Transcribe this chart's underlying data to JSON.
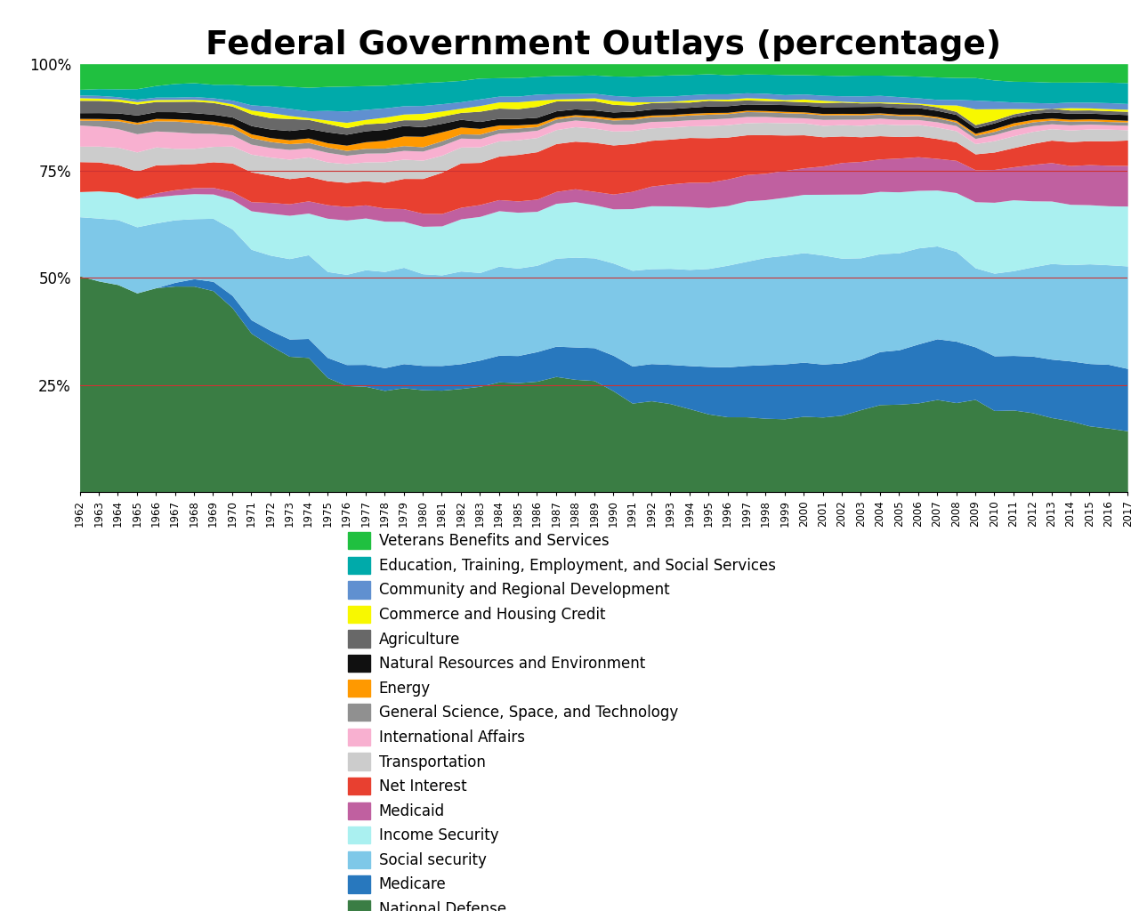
{
  "title": "Federal Government Outlays (percentage)",
  "years": [
    1962,
    1963,
    1964,
    1965,
    1966,
    1967,
    1968,
    1969,
    1970,
    1971,
    1972,
    1973,
    1974,
    1975,
    1976,
    1977,
    1978,
    1979,
    1980,
    1981,
    1982,
    1983,
    1984,
    1985,
    1986,
    1987,
    1988,
    1989,
    1990,
    1991,
    1992,
    1993,
    1994,
    1995,
    1996,
    1997,
    1998,
    1999,
    2000,
    2001,
    2002,
    2003,
    2004,
    2005,
    2006,
    2007,
    2008,
    2009,
    2010,
    2011,
    2012,
    2013,
    2014,
    2015,
    2016,
    2017
  ],
  "stack_order": [
    "National Defense",
    "Medicare",
    "Social security",
    "Income Security",
    "Medicaid",
    "Net Interest",
    "Transportation",
    "International Affairs",
    "General Science, Space, and Technology",
    "Energy",
    "Natural Resources and Environment",
    "Agriculture",
    "Commerce and Housing Credit",
    "Community and Regional Development",
    "Education, Training, Employment, and Social Services",
    "Veterans Benefits and Services"
  ],
  "colors": {
    "National Defense": "#3a7d44",
    "Medicare": "#2878be",
    "Social security": "#7ec8e8",
    "Income Security": "#aaf0f0",
    "Medicaid": "#c060a0",
    "Net Interest": "#e84030",
    "Transportation": "#cccccc",
    "International Affairs": "#f8b0d0",
    "General Science, Space, and Technology": "#909090",
    "Energy": "#ff9900",
    "Natural Resources and Environment": "#101010",
    "Agriculture": "#686868",
    "Commerce and Housing Credit": "#f8f800",
    "Community and Regional Development": "#6090d0",
    "Education, Training, Employment, and Social Services": "#00aaaa",
    "Veterans Benefits and Services": "#20c040"
  },
  "legend_order": [
    "Veterans Benefits and Services",
    "Education, Training, Employment, and Social Services",
    "Community and Regional Development",
    "Commerce and Housing Credit",
    "Agriculture",
    "Natural Resources and Environment",
    "Energy",
    "General Science, Space, and Technology",
    "International Affairs",
    "Transportation",
    "Net Interest",
    "Medicaid",
    "Income Security",
    "Social security",
    "Medicare",
    "National Defense"
  ],
  "data": {
    "National Defense": [
      49.0,
      46.6,
      44.7,
      41.5,
      42.2,
      43.8,
      44.5,
      43.1,
      40.5,
      36.7,
      33.9,
      30.7,
      29.7,
      26.2,
      24.3,
      24.1,
      23.2,
      23.8,
      23.5,
      23.9,
      24.2,
      25.8,
      26.8,
      27.0,
      27.3,
      28.2,
      27.2,
      26.8,
      23.9,
      20.6,
      21.3,
      20.5,
      19.3,
      17.9,
      17.0,
      16.8,
      16.2,
      16.1,
      16.5,
      16.4,
      17.0,
      18.7,
      19.9,
      20.0,
      20.1,
      21.0,
      20.8,
      23.4,
      20.1,
      20.1,
      19.2,
      18.2,
      17.8,
      16.3,
      15.9,
      14.9
    ],
    "Medicare": [
      0.0,
      0.0,
      0.0,
      0.0,
      0.0,
      0.8,
      1.6,
      2.0,
      2.7,
      3.1,
      3.5,
      3.9,
      4.2,
      4.6,
      4.8,
      5.0,
      5.2,
      5.5,
      5.6,
      5.8,
      5.8,
      6.4,
      6.5,
      6.7,
      7.3,
      7.4,
      7.8,
      7.9,
      8.4,
      8.6,
      8.7,
      9.1,
      10.0,
      10.9,
      11.3,
      11.5,
      11.8,
      12.1,
      11.8,
      11.6,
      11.6,
      11.5,
      12.1,
      12.4,
      13.3,
      13.8,
      14.3,
      13.3,
      13.5,
      13.4,
      13.7,
      14.3,
      15.0,
      15.4,
      15.9,
      15.2
    ],
    "Social security": [
      13.4,
      13.9,
      14.0,
      13.8,
      13.4,
      13.3,
      13.0,
      13.5,
      14.6,
      16.3,
      17.4,
      18.2,
      18.5,
      19.7,
      20.6,
      21.6,
      22.0,
      22.0,
      21.1,
      21.3,
      21.7,
      21.4,
      21.7,
      21.6,
      21.3,
      21.5,
      21.7,
      21.6,
      21.8,
      22.2,
      22.2,
      22.3,
      22.3,
      22.5,
      23.0,
      23.3,
      23.6,
      23.9,
      23.9,
      23.9,
      23.2,
      23.0,
      22.3,
      22.1,
      21.7,
      21.1,
      20.9,
      20.0,
      20.4,
      20.8,
      21.6,
      23.4,
      24.1,
      24.6,
      24.8,
      25.0
    ],
    "Income Security": [
      5.7,
      6.0,
      5.9,
      5.9,
      5.4,
      5.3,
      5.4,
      5.2,
      6.5,
      8.9,
      9.7,
      9.8,
      9.2,
      12.2,
      12.4,
      11.8,
      11.5,
      10.5,
      10.9,
      11.5,
      12.2,
      13.7,
      13.5,
      13.8,
      13.3,
      13.4,
      13.4,
      12.8,
      12.8,
      14.3,
      14.7,
      14.5,
      14.6,
      14.0,
      13.5,
      13.5,
      12.7,
      12.8,
      12.7,
      13.3,
      14.2,
      14.5,
      14.2,
      13.9,
      13.0,
      12.7,
      13.7,
      16.7,
      17.5,
      17.4,
      16.0,
      15.3,
      15.1,
      14.6,
      14.7,
      14.6
    ],
    "Medicaid": [
      0.0,
      0.0,
      0.0,
      0.0,
      0.8,
      1.1,
      1.3,
      1.4,
      1.7,
      2.1,
      2.5,
      2.6,
      2.7,
      3.1,
      3.1,
      3.0,
      3.0,
      2.9,
      3.0,
      2.9,
      2.7,
      2.9,
      2.7,
      2.8,
      3.0,
      2.9,
      3.1,
      3.2,
      3.5,
      4.0,
      4.6,
      5.1,
      5.6,
      5.8,
      6.0,
      5.9,
      5.8,
      5.9,
      5.8,
      6.2,
      7.0,
      7.4,
      7.4,
      7.7,
      7.6,
      7.2,
      7.5,
      8.1,
      8.1,
      8.1,
      8.8,
      9.4,
      9.7,
      9.9,
      10.1,
      9.9
    ],
    "Net Interest": [
      6.8,
      6.4,
      5.9,
      5.7,
      5.8,
      5.4,
      5.2,
      5.5,
      6.3,
      6.9,
      6.3,
      5.7,
      5.4,
      5.5,
      5.5,
      5.5,
      5.9,
      6.9,
      8.0,
      9.7,
      10.4,
      10.3,
      10.6,
      11.5,
      11.7,
      11.7,
      11.5,
      11.8,
      11.6,
      11.1,
      10.7,
      10.4,
      10.4,
      10.2,
      9.5,
      8.9,
      8.5,
      7.8,
      7.2,
      6.4,
      5.9,
      5.6,
      5.3,
      4.9,
      4.7,
      4.5,
      4.3,
      4.0,
      4.3,
      4.7,
      5.1,
      5.5,
      6.0,
      5.9,
      6.1,
      6.2
    ],
    "Transportation": [
      3.5,
      3.5,
      3.8,
      4.0,
      3.7,
      3.4,
      3.3,
      3.3,
      3.7,
      4.1,
      4.2,
      4.4,
      4.3,
      4.3,
      4.3,
      4.3,
      4.7,
      4.4,
      4.2,
      4.0,
      3.7,
      3.8,
      3.7,
      3.6,
      3.5,
      3.4,
      3.5,
      3.4,
      3.3,
      3.0,
      2.9,
      2.8,
      2.7,
      2.8,
      2.8,
      2.7,
      2.7,
      2.7,
      2.6,
      2.5,
      2.5,
      2.6,
      2.7,
      2.7,
      2.6,
      2.6,
      2.6,
      2.6,
      2.8,
      2.9,
      2.9,
      2.8,
      2.9,
      2.9,
      2.9,
      2.5
    ],
    "International Affairs": [
      4.8,
      4.4,
      4.0,
      3.8,
      3.3,
      3.5,
      3.3,
      2.8,
      2.5,
      2.3,
      2.2,
      2.2,
      2.0,
      2.2,
      1.9,
      2.0,
      2.0,
      2.0,
      2.1,
      2.3,
      2.1,
      2.0,
      1.9,
      1.9,
      1.8,
      1.7,
      1.6,
      1.6,
      1.6,
      1.5,
      1.5,
      1.4,
      1.4,
      1.5,
      1.5,
      1.4,
      1.3,
      1.2,
      1.1,
      1.3,
      1.2,
      1.4,
      1.3,
      1.2,
      1.1,
      1.2,
      1.2,
      1.3,
      1.5,
      1.6,
      1.4,
      1.2,
      1.3,
      1.2,
      1.1,
      1.1
    ],
    "General Science, Space, and Technology": [
      1.1,
      1.3,
      1.7,
      2.0,
      2.1,
      2.3,
      2.3,
      1.9,
      1.6,
      1.5,
      1.4,
      1.3,
      1.2,
      1.2,
      1.1,
      1.1,
      1.1,
      1.1,
      1.0,
      1.1,
      1.0,
      1.1,
      1.0,
      1.0,
      0.9,
      0.9,
      0.9,
      0.9,
      1.0,
      1.1,
      1.1,
      1.1,
      1.1,
      1.1,
      1.0,
      1.1,
      1.0,
      1.0,
      1.0,
      1.0,
      1.0,
      1.0,
      0.9,
      0.9,
      0.9,
      0.9,
      0.8,
      0.8,
      0.8,
      0.9,
      0.9,
      0.9,
      0.9,
      0.8,
      0.8,
      0.8
    ],
    "Energy": [
      0.4,
      0.4,
      0.4,
      0.4,
      0.5,
      0.5,
      0.6,
      0.7,
      0.7,
      0.9,
      0.9,
      0.9,
      1.0,
      1.0,
      1.2,
      1.5,
      1.8,
      2.2,
      2.4,
      2.1,
      1.6,
      1.4,
      1.0,
      0.8,
      0.7,
      0.5,
      0.4,
      0.5,
      0.5,
      0.5,
      0.4,
      0.4,
      0.4,
      0.4,
      0.3,
      0.3,
      0.3,
      0.3,
      0.3,
      0.3,
      0.3,
      0.3,
      0.3,
      0.3,
      0.3,
      0.3,
      0.4,
      0.5,
      0.7,
      0.7,
      0.6,
      0.5,
      0.5,
      0.5,
      0.5,
      0.4
    ],
    "Natural Resources and Environment": [
      1.3,
      1.3,
      1.3,
      1.5,
      1.4,
      1.5,
      1.5,
      1.5,
      1.6,
      1.9,
      2.0,
      2.1,
      2.1,
      2.5,
      2.5,
      2.5,
      2.5,
      2.4,
      2.2,
      2.0,
      1.8,
      1.7,
      1.6,
      1.6,
      1.6,
      1.5,
      1.4,
      1.4,
      1.4,
      1.4,
      1.4,
      1.4,
      1.4,
      1.5,
      1.5,
      1.4,
      1.4,
      1.5,
      1.5,
      1.5,
      1.5,
      1.6,
      1.5,
      1.5,
      1.5,
      1.4,
      1.4,
      1.4,
      1.4,
      1.5,
      1.5,
      1.5,
      1.5,
      1.4,
      1.4,
      1.4
    ],
    "Agriculture": [
      2.8,
      2.7,
      2.5,
      2.3,
      2.1,
      2.2,
      2.5,
      2.5,
      2.4,
      2.7,
      2.6,
      2.7,
      2.0,
      1.9,
      1.5,
      1.6,
      1.5,
      1.3,
      1.6,
      1.7,
      1.6,
      2.5,
      2.5,
      2.4,
      2.7,
      2.4,
      2.0,
      2.2,
      1.8,
      1.4,
      1.5,
      1.5,
      1.2,
      1.3,
      1.1,
      0.9,
      0.8,
      0.8,
      0.7,
      0.9,
      1.0,
      0.8,
      0.8,
      0.9,
      0.8,
      0.8,
      0.7,
      0.8,
      0.7,
      0.7,
      0.7,
      0.9,
      0.8,
      0.8,
      0.8,
      0.8
    ],
    "Commerce and Housing Credit": [
      0.6,
      0.5,
      0.5,
      0.5,
      0.4,
      0.4,
      0.4,
      0.4,
      0.5,
      0.9,
      1.2,
      0.7,
      0.4,
      0.8,
      1.2,
      1.0,
      1.3,
      1.3,
      1.5,
      1.2,
      1.0,
      1.4,
      1.5,
      1.7,
      1.5,
      0.5,
      0.5,
      0.7,
      0.9,
      0.8,
      0.2,
      0.2,
      0.5,
      0.3,
      0.4,
      0.5,
      0.5,
      0.3,
      0.6,
      0.5,
      0.2,
      0.2,
      0.2,
      0.3,
      0.2,
      0.5,
      1.5,
      4.0,
      2.8,
      1.3,
      0.4,
      0.0,
      0.6,
      0.5,
      0.5,
      0.5
    ],
    "Community and Regional Development": [
      0.6,
      0.6,
      0.5,
      0.5,
      0.5,
      0.5,
      0.6,
      0.6,
      0.8,
      1.2,
      1.5,
      1.6,
      1.5,
      2.2,
      2.6,
      2.3,
      2.1,
      1.9,
      1.8,
      1.7,
      1.5,
      1.6,
      1.4,
      1.4,
      1.5,
      1.3,
      1.2,
      1.1,
      1.2,
      1.2,
      1.3,
      1.2,
      1.2,
      1.2,
      1.2,
      1.1,
      1.1,
      1.1,
      1.1,
      1.1,
      1.2,
      1.4,
      1.5,
      1.3,
      1.2,
      1.2,
      1.3,
      2.2,
      1.9,
      1.6,
      1.5,
      1.3,
      1.4,
      1.4,
      1.5,
      1.4
    ],
    "Education, Training, Employment, and Social Services": [
      1.3,
      1.5,
      1.7,
      2.2,
      2.4,
      2.9,
      3.0,
      2.9,
      3.5,
      4.5,
      4.8,
      5.0,
      5.2,
      5.5,
      5.7,
      5.4,
      5.2,
      5.0,
      5.3,
      5.2,
      5.0,
      5.1,
      4.5,
      4.6,
      4.4,
      4.4,
      4.4,
      4.4,
      4.6,
      4.7,
      4.8,
      4.9,
      4.7,
      4.6,
      4.3,
      4.2,
      4.2,
      4.4,
      4.2,
      4.4,
      4.5,
      4.7,
      4.6,
      4.8,
      4.9,
      5.1,
      5.1,
      5.7,
      5.2,
      5.1,
      5.1,
      5.1,
      5.0,
      5.0,
      5.1,
      5.1
    ],
    "Veterans Benefits and Services": [
      5.8,
      5.5,
      5.4,
      5.2,
      4.5,
      4.2,
      4.1,
      4.4,
      4.5,
      5.0,
      5.0,
      5.1,
      5.2,
      5.2,
      5.1,
      5.0,
      4.9,
      4.6,
      4.3,
      4.2,
      3.9,
      3.5,
      3.4,
      3.4,
      3.1,
      2.9,
      2.8,
      2.7,
      2.9,
      2.9,
      2.8,
      2.6,
      2.5,
      2.3,
      2.5,
      2.3,
      2.3,
      2.4,
      2.4,
      2.5,
      2.6,
      2.6,
      2.6,
      2.7,
      2.8,
      3.0,
      3.2,
      3.5,
      4.0,
      4.3,
      4.3,
      4.5,
      4.6,
      4.5,
      4.6,
      4.6
    ]
  }
}
